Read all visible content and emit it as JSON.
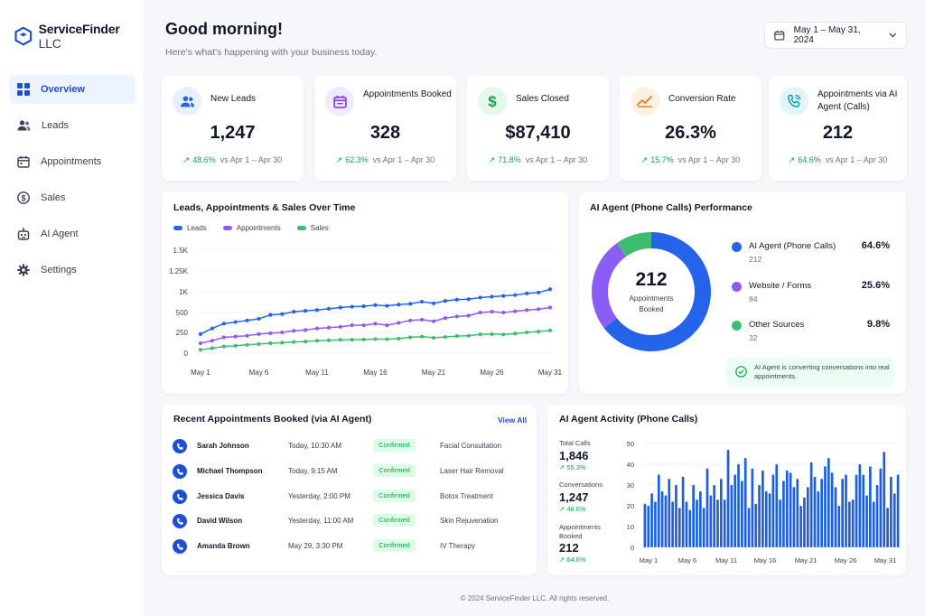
{
  "brand": {
    "name": "ServiceFinder",
    "suffix": "LLC"
  },
  "nav": [
    {
      "label": "Overview",
      "icon": "grid-icon",
      "active": true
    },
    {
      "label": "Leads",
      "icon": "users-icon"
    },
    {
      "label": "Appointments",
      "icon": "calendar-icon"
    },
    {
      "label": "Sales",
      "icon": "dollar-icon"
    },
    {
      "label": "AI Agent",
      "icon": "robot-icon"
    },
    {
      "label": "Settings",
      "icon": "gear-icon"
    }
  ],
  "header": {
    "greeting": "Good morning!",
    "subtitle": "Here's what's happening with your business today.",
    "date_range": "May 1 – May 31, 2024"
  },
  "kpis": [
    {
      "label": "New Leads",
      "value": "1,247",
      "change": "48.6%",
      "compare": "vs Apr 1 – Apr 30",
      "icon": "users-icon",
      "accent": "#2563eb",
      "bg": "#e8efff"
    },
    {
      "label": "Appointments Booked",
      "value": "328",
      "change": "62.3%",
      "compare": "vs Apr 1 – Apr 30",
      "icon": "calendar-icon",
      "accent": "#7c3aed",
      "bg": "#f1e9ff"
    },
    {
      "label": "Sales Closed",
      "value": "$87,410",
      "change": "71.8%",
      "compare": "vs Apr 1 – Apr 30",
      "icon": "dollar-icon",
      "accent": "#16a34a",
      "bg": "#e6f8ec"
    },
    {
      "label": "Conversion Rate",
      "value": "26.3%",
      "change": "15.7%",
      "compare": "vs Apr 1 – Apr 30",
      "icon": "trend-up-icon",
      "accent": "#ea7a1a",
      "bg": "#fff1e3"
    },
    {
      "label": "Appointments via AI Agent (Calls)",
      "value": "212",
      "change": "64.6%",
      "compare": "vs Apr 1 – Apr 30",
      "icon": "phone-call-icon",
      "accent": "#0e94b8",
      "bg": "#e3f5fa"
    }
  ],
  "line_chart": {
    "title": "Leads, Appointments & Sales Over Time",
    "chart_data": {
      "type": "line",
      "x_tick_labels": [
        "May 1",
        "May 6",
        "May 11",
        "May 16",
        "May 21",
        "May 26",
        "May 31"
      ],
      "y_tick_labels": [
        "0",
        "250",
        "500",
        "1K",
        "1.25K",
        "1.5K"
      ],
      "ylim": [
        0,
        1500
      ],
      "grid": true,
      "legend_position": "top-left",
      "x": [
        1,
        2,
        3,
        4,
        5,
        6,
        7,
        8,
        9,
        10,
        11,
        12,
        13,
        14,
        15,
        16,
        17,
        18,
        19,
        20,
        21,
        22,
        23,
        24,
        25,
        26,
        27,
        28,
        29,
        30,
        31
      ],
      "series": [
        {
          "name": "Leads",
          "color": "#2563eb",
          "values": [
            230,
            300,
            360,
            380,
            400,
            420,
            470,
            480,
            520,
            540,
            560,
            590,
            620,
            640,
            650,
            680,
            660,
            690,
            710,
            760,
            720,
            780,
            810,
            820,
            860,
            880,
            900,
            920,
            960,
            980,
            1030
          ]
        },
        {
          "name": "Appointments",
          "color": "#8b5cf6",
          "values": [
            120,
            150,
            190,
            200,
            210,
            230,
            240,
            250,
            270,
            280,
            300,
            310,
            320,
            340,
            340,
            360,
            340,
            370,
            400,
            410,
            390,
            430,
            450,
            460,
            500,
            520,
            500,
            530,
            560,
            580,
            620
          ]
        },
        {
          "name": "Sales",
          "color": "#3ebd70",
          "values": [
            40,
            60,
            80,
            90,
            100,
            110,
            120,
            125,
            135,
            140,
            150,
            155,
            160,
            162,
            165,
            170,
            168,
            175,
            190,
            200,
            185,
            195,
            205,
            210,
            225,
            230,
            225,
            235,
            250,
            260,
            275
          ]
        }
      ]
    }
  },
  "donut": {
    "title": "AI Agent (Phone Calls) Performance",
    "center_value": "212",
    "center_label_1": "Appointments",
    "center_label_2": "Booked",
    "chart_data": {
      "type": "pie",
      "labels": [
        "AI Agent (Phone Calls)",
        "Website / Forms",
        "Other Sources"
      ],
      "values": [
        64.6,
        25.6,
        9.8
      ],
      "counts": [
        "212",
        "84",
        "32"
      ],
      "pct_labels": [
        "64.6%",
        "25.6%",
        "9.8%"
      ],
      "colors": [
        "#2563eb",
        "#8b5cf6",
        "#3ebd70"
      ]
    },
    "insight": "AI Agent is converting conversations into real appointments."
  },
  "recent": {
    "title": "Recent Appointments Booked (via AI Agent)",
    "view_all": "View All",
    "rows": [
      {
        "name": "Sarah Johnson",
        "time": "Today, 10:30 AM",
        "status": "Confirmed",
        "service": "Facial Consultation"
      },
      {
        "name": "Michael Thompson",
        "time": "Today, 9:15 AM",
        "status": "Confirmed",
        "service": "Laser Hair Removal"
      },
      {
        "name": "Jessica Davis",
        "time": "Yesterday, 2:00 PM",
        "status": "Confirmed",
        "service": "Botox Treatment"
      },
      {
        "name": "David Wilson",
        "time": "Yesterday, 11:00 AM",
        "status": "Confirmed",
        "service": "Skin Rejuvenation"
      },
      {
        "name": "Amanda Brown",
        "time": "May 29, 3:30 PM",
        "status": "Confirmed",
        "service": "IV Therapy"
      }
    ]
  },
  "activity": {
    "title": "AI Agent Activity (Phone Calls)",
    "stats": [
      {
        "label": "Total Calls",
        "value": "1,846",
        "change": "55.3%"
      },
      {
        "label": "Conversations",
        "value": "1,247",
        "change": "48.6%"
      },
      {
        "label": "Appointments Booked",
        "value": "212",
        "change": "64.6%"
      }
    ],
    "chart_data": {
      "type": "bar",
      "x_tick_labels": [
        "May 1",
        "May 6",
        "May 11",
        "May 16",
        "May 21",
        "May 26",
        "May 31"
      ],
      "y_tick_labels": [
        "0",
        "10",
        "20",
        "30",
        "40",
        "50"
      ],
      "ylim": [
        0,
        50
      ],
      "color": "#1d5fe0",
      "values": [
        21,
        20,
        26,
        22,
        35,
        27,
        25,
        33,
        22,
        30,
        19,
        34,
        22,
        18,
        30,
        23,
        27,
        19,
        38,
        25,
        30,
        23,
        33,
        23,
        47,
        30,
        35,
        40,
        32,
        43,
        19,
        38,
        21,
        30,
        37,
        27,
        26,
        35,
        40,
        23,
        32,
        37,
        36,
        29,
        33,
        20,
        24,
        29,
        41,
        34,
        27,
        33,
        39,
        43,
        36,
        29,
        20,
        33,
        35,
        22,
        23,
        35,
        40,
        35,
        25,
        39,
        22,
        30,
        38,
        46,
        19,
        34,
        26,
        35
      ]
    }
  },
  "footer": "© 2024 ServiceFinder LLC. All rights reserved."
}
